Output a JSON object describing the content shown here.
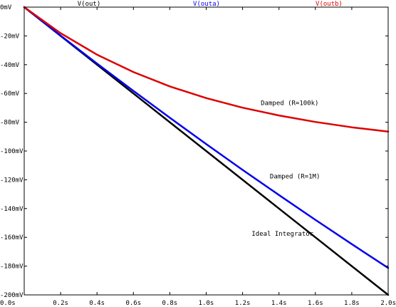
{
  "chart_data": {
    "type": "line",
    "xlim": [
      0,
      2.0
    ],
    "ylim": [
      -200,
      0
    ],
    "x_unit": "s",
    "y_unit": "mV",
    "grid": false,
    "legend_placement": "top",
    "x_ticks": [
      "0.0s",
      "0.2s",
      "0.4s",
      "0.6s",
      "0.8s",
      "1.0s",
      "1.2s",
      "1.4s",
      "1.6s",
      "1.8s",
      "2.0s"
    ],
    "y_ticks": [
      "0mV",
      "-20mV",
      "-40mV",
      "-60mV",
      "-80mV",
      "-100mV",
      "-120mV",
      "-140mV",
      "-160mV",
      "-180mV",
      "-200mV"
    ],
    "x_tick_values": [
      0,
      0.2,
      0.4,
      0.6,
      0.8,
      1.0,
      1.2,
      1.4,
      1.6,
      1.8,
      2.0
    ],
    "y_tick_values": [
      0,
      -20,
      -40,
      -60,
      -80,
      -100,
      -120,
      -140,
      -160,
      -180,
      -200
    ],
    "series": [
      {
        "name": "V(out)",
        "color": "#000000",
        "x": [
          0,
          0.2,
          0.4,
          0.6,
          0.8,
          1.0,
          1.2,
          1.4,
          1.6,
          1.8,
          2.0
        ],
        "y": [
          0,
          -20,
          -40,
          -60,
          -80,
          -100,
          -120,
          -140,
          -160,
          -180,
          -200
        ]
      },
      {
        "name": "V(outa)",
        "color": "#0000ee",
        "x": [
          0,
          0.2,
          0.4,
          0.6,
          0.8,
          1.0,
          1.2,
          1.4,
          1.6,
          1.8,
          2.0
        ],
        "y": [
          0,
          -19.8,
          -39.2,
          -58.2,
          -76.9,
          -95.2,
          -113.1,
          -130.6,
          -147.8,
          -164.7,
          -181.3
        ]
      },
      {
        "name": "V(outb)",
        "color": "#dd0000",
        "x": [
          0,
          0.2,
          0.4,
          0.6,
          0.8,
          1.0,
          1.2,
          1.4,
          1.6,
          1.8,
          2.0
        ],
        "y": [
          0,
          -18.1,
          -33.0,
          -45.1,
          -55.1,
          -63.2,
          -69.9,
          -75.3,
          -79.8,
          -83.5,
          -86.5
        ]
      }
    ],
    "annotations": [
      {
        "text": "Damped (R=100k)",
        "x": 1.3,
        "y": -68
      },
      {
        "text": "Damped (R=1M)",
        "x": 1.35,
        "y": -119
      },
      {
        "text": "Ideal Integrator",
        "x": 1.25,
        "y": -159
      }
    ]
  }
}
